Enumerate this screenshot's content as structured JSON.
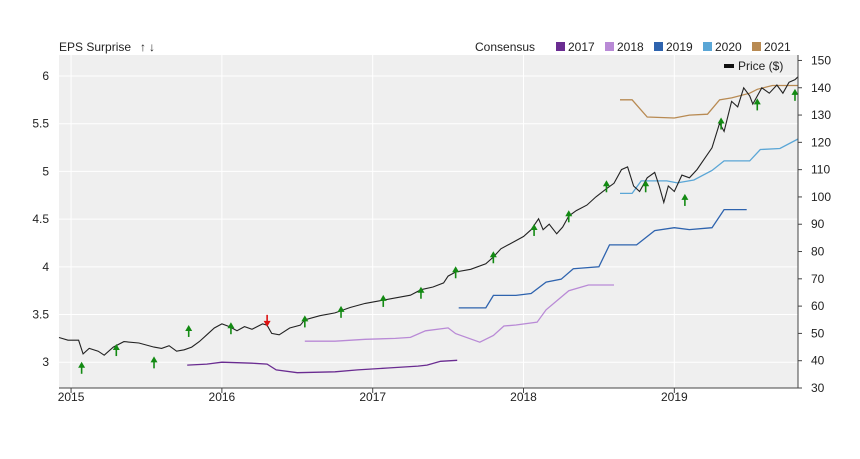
{
  "chart_data": {
    "type": "line",
    "left_axis_title": "EPS Surprise",
    "up_arrow_glyph": "↑",
    "down_arrow_glyph": "↓",
    "legend_title": "Consensus",
    "price_legend_label": "Price ($)",
    "colors": {
      "surprise_up": "#138a13",
      "surprise_down": "#dd1111",
      "price": "#222222",
      "consensus_2017": "#6a2c91",
      "consensus_2018": "#b98ad6",
      "consensus_2019": "#2e63ae",
      "consensus_2020": "#5aa6d6",
      "consensus_2021": "#b88a52",
      "plot_bg": "#efefef",
      "grid": "#ffffff"
    },
    "x_range": [
      2014.92,
      2019.82
    ],
    "x_ticks": [
      {
        "value": 2015.0,
        "label": "2015"
      },
      {
        "value": 2016.0,
        "label": "2016"
      },
      {
        "value": 2017.0,
        "label": "2017"
      },
      {
        "value": 2018.0,
        "label": "2018"
      },
      {
        "value": 2019.0,
        "label": "2019"
      }
    ],
    "left_axis": {
      "range": [
        2.73,
        6.22
      ],
      "ticks": [
        "3",
        "3.5",
        "4",
        "4.5",
        "5",
        "5.5",
        "6"
      ]
    },
    "right_axis": {
      "range": [
        30,
        152
      ],
      "ticks": [
        "30",
        "40",
        "50",
        "60",
        "70",
        "80",
        "90",
        "100",
        "110",
        "120",
        "130",
        "140",
        "150"
      ]
    },
    "consensus_series": [
      {
        "name": "2017",
        "axis": "eps",
        "points": [
          [
            2015.77,
            2.97
          ],
          [
            2015.9,
            2.98
          ],
          [
            2016.0,
            3.0
          ],
          [
            2016.2,
            2.99
          ],
          [
            2016.3,
            2.98
          ],
          [
            2016.36,
            2.92
          ],
          [
            2016.5,
            2.89
          ],
          [
            2016.75,
            2.9
          ],
          [
            2016.9,
            2.92
          ],
          [
            2017.1,
            2.94
          ],
          [
            2017.3,
            2.96
          ],
          [
            2017.36,
            2.97
          ],
          [
            2017.45,
            3.01
          ],
          [
            2017.56,
            3.02
          ]
        ]
      },
      {
        "name": "2018",
        "axis": "eps",
        "points": [
          [
            2016.55,
            3.22
          ],
          [
            2016.75,
            3.22
          ],
          [
            2016.95,
            3.24
          ],
          [
            2017.15,
            3.25
          ],
          [
            2017.25,
            3.26
          ],
          [
            2017.35,
            3.33
          ],
          [
            2017.5,
            3.36
          ],
          [
            2017.55,
            3.3
          ],
          [
            2017.71,
            3.21
          ],
          [
            2017.8,
            3.28
          ],
          [
            2017.87,
            3.38
          ],
          [
            2017.95,
            3.39
          ],
          [
            2018.09,
            3.42
          ],
          [
            2018.15,
            3.55
          ],
          [
            2018.3,
            3.75
          ],
          [
            2018.43,
            3.81
          ],
          [
            2018.6,
            3.81
          ]
        ]
      },
      {
        "name": "2019",
        "axis": "eps",
        "points": [
          [
            2017.57,
            3.57
          ],
          [
            2017.75,
            3.57
          ],
          [
            2017.8,
            3.7
          ],
          [
            2017.95,
            3.7
          ],
          [
            2018.05,
            3.72
          ],
          [
            2018.15,
            3.84
          ],
          [
            2018.25,
            3.87
          ],
          [
            2018.33,
            3.98
          ],
          [
            2018.5,
            4.0
          ],
          [
            2018.57,
            4.23
          ],
          [
            2018.75,
            4.23
          ],
          [
            2018.87,
            4.38
          ],
          [
            2019.0,
            4.41
          ],
          [
            2019.1,
            4.39
          ],
          [
            2019.25,
            4.41
          ],
          [
            2019.33,
            4.6
          ],
          [
            2019.48,
            4.6
          ]
        ]
      },
      {
        "name": "2020",
        "axis": "eps",
        "points": [
          [
            2018.64,
            4.77
          ],
          [
            2018.72,
            4.77
          ],
          [
            2018.78,
            4.9
          ],
          [
            2018.95,
            4.9
          ],
          [
            2019.02,
            4.88
          ],
          [
            2019.13,
            4.91
          ],
          [
            2019.25,
            5.01
          ],
          [
            2019.33,
            5.11
          ],
          [
            2019.5,
            5.11
          ],
          [
            2019.57,
            5.23
          ],
          [
            2019.7,
            5.24
          ],
          [
            2019.82,
            5.34
          ]
        ]
      },
      {
        "name": "2021",
        "axis": "eps",
        "points": [
          [
            2018.64,
            5.75
          ],
          [
            2018.72,
            5.75
          ],
          [
            2018.82,
            5.57
          ],
          [
            2019.0,
            5.56
          ],
          [
            2019.1,
            5.59
          ],
          [
            2019.22,
            5.6
          ],
          [
            2019.3,
            5.75
          ],
          [
            2019.38,
            5.77
          ],
          [
            2019.5,
            5.82
          ],
          [
            2019.55,
            5.86
          ],
          [
            2019.65,
            5.9
          ],
          [
            2019.82,
            5.9
          ]
        ]
      }
    ],
    "price_series": {
      "axis": "price",
      "points": [
        [
          2014.92,
          48.5
        ],
        [
          2014.98,
          47.5
        ],
        [
          2015.02,
          47.5
        ],
        [
          2015.05,
          47.5
        ],
        [
          2015.08,
          42.5
        ],
        [
          2015.12,
          44.5
        ],
        [
          2015.18,
          43.5
        ],
        [
          2015.22,
          42.0
        ],
        [
          2015.28,
          45.0
        ],
        [
          2015.35,
          47.0
        ],
        [
          2015.45,
          46.5
        ],
        [
          2015.55,
          45.0
        ],
        [
          2015.6,
          44.5
        ],
        [
          2015.65,
          45.5
        ],
        [
          2015.7,
          43.5
        ],
        [
          2015.75,
          44.0
        ],
        [
          2015.8,
          45.0
        ],
        [
          2015.85,
          47.0
        ],
        [
          2015.9,
          49.5
        ],
        [
          2015.95,
          52.0
        ],
        [
          2016.0,
          53.5
        ],
        [
          2016.05,
          52.5
        ],
        [
          2016.1,
          51.0
        ],
        [
          2016.15,
          52.5
        ],
        [
          2016.2,
          51.5
        ],
        [
          2016.27,
          53.5
        ],
        [
          2016.3,
          53.0
        ],
        [
          2016.33,
          50.0
        ],
        [
          2016.38,
          49.5
        ],
        [
          2016.45,
          52.0
        ],
        [
          2016.52,
          53.0
        ],
        [
          2016.55,
          55.0
        ],
        [
          2016.65,
          56.5
        ],
        [
          2016.75,
          57.5
        ],
        [
          2016.85,
          59.5
        ],
        [
          2016.95,
          61.0
        ],
        [
          2017.05,
          62.0
        ],
        [
          2017.15,
          63.0
        ],
        [
          2017.25,
          64.0
        ],
        [
          2017.32,
          66.0
        ],
        [
          2017.4,
          67.0
        ],
        [
          2017.47,
          68.5
        ],
        [
          2017.5,
          71.0
        ],
        [
          2017.55,
          72.5
        ],
        [
          2017.65,
          73.5
        ],
        [
          2017.75,
          75.5
        ],
        [
          2017.8,
          78.0
        ],
        [
          2017.85,
          81.0
        ],
        [
          2017.95,
          84.0
        ],
        [
          2018.0,
          85.5
        ],
        [
          2018.05,
          88.0
        ],
        [
          2018.1,
          92.0
        ],
        [
          2018.13,
          88.0
        ],
        [
          2018.17,
          90.0
        ],
        [
          2018.22,
          86.5
        ],
        [
          2018.26,
          89.0
        ],
        [
          2018.3,
          93.0
        ],
        [
          2018.35,
          95.0
        ],
        [
          2018.42,
          97.0
        ],
        [
          2018.48,
          100.0
        ],
        [
          2018.55,
          103.0
        ],
        [
          2018.6,
          105.0
        ],
        [
          2018.65,
          110.0
        ],
        [
          2018.69,
          111.0
        ],
        [
          2018.73,
          104.0
        ],
        [
          2018.77,
          102.0
        ],
        [
          2018.82,
          107.0
        ],
        [
          2018.87,
          109.0
        ],
        [
          2018.9,
          104.0
        ],
        [
          2018.93,
          98.0
        ],
        [
          2018.96,
          104.0
        ],
        [
          2019.0,
          102.0
        ],
        [
          2019.05,
          108.0
        ],
        [
          2019.1,
          107.0
        ],
        [
          2019.15,
          110.0
        ],
        [
          2019.2,
          114.0
        ],
        [
          2019.25,
          118.0
        ],
        [
          2019.3,
          127.0
        ],
        [
          2019.33,
          124.0
        ],
        [
          2019.38,
          135.0
        ],
        [
          2019.42,
          133.0
        ],
        [
          2019.46,
          140.0
        ],
        [
          2019.5,
          137.0
        ],
        [
          2019.52,
          134.0
        ],
        [
          2019.58,
          140.0
        ],
        [
          2019.63,
          138.0
        ],
        [
          2019.68,
          141.0
        ],
        [
          2019.72,
          138.0
        ],
        [
          2019.76,
          142.0
        ],
        [
          2019.8,
          143.0
        ],
        [
          2019.82,
          144.0
        ]
      ]
    },
    "surprises": [
      {
        "x": 2015.07,
        "price": 38.5,
        "dir": "up"
      },
      {
        "x": 2015.3,
        "price": 45.0,
        "dir": "up"
      },
      {
        "x": 2015.55,
        "price": 40.5,
        "dir": "up"
      },
      {
        "x": 2015.78,
        "price": 52.0,
        "dir": "up"
      },
      {
        "x": 2016.06,
        "price": 53.0,
        "dir": "up"
      },
      {
        "x": 2016.3,
        "price": 53.5,
        "dir": "down"
      },
      {
        "x": 2016.55,
        "price": 55.5,
        "dir": "up"
      },
      {
        "x": 2016.79,
        "price": 59.0,
        "dir": "up"
      },
      {
        "x": 2017.07,
        "price": 63.0,
        "dir": "up"
      },
      {
        "x": 2017.32,
        "price": 66.0,
        "dir": "up"
      },
      {
        "x": 2017.55,
        "price": 73.5,
        "dir": "up"
      },
      {
        "x": 2017.8,
        "price": 79.0,
        "dir": "up"
      },
      {
        "x": 2018.07,
        "price": 89.0,
        "dir": "up"
      },
      {
        "x": 2018.3,
        "price": 94.0,
        "dir": "up"
      },
      {
        "x": 2018.55,
        "price": 105.0,
        "dir": "up"
      },
      {
        "x": 2018.81,
        "price": 105.0,
        "dir": "up"
      },
      {
        "x": 2019.07,
        "price": 100.0,
        "dir": "up"
      },
      {
        "x": 2019.31,
        "price": 128.0,
        "dir": "up"
      },
      {
        "x": 2019.55,
        "price": 135.0,
        "dir": "up"
      },
      {
        "x": 2019.8,
        "price": 138.5,
        "dir": "up"
      }
    ]
  }
}
